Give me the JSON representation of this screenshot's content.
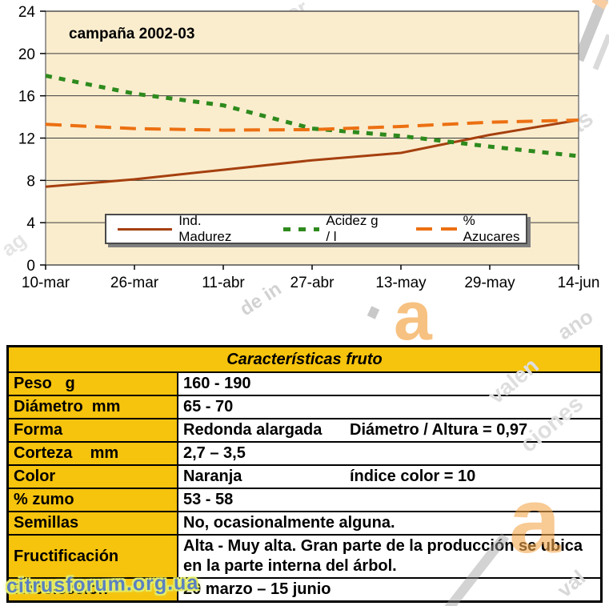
{
  "chart_data": {
    "type": "line",
    "title": "campaña 2002-03",
    "categories": [
      "10-mar",
      "26-mar",
      "11-abr",
      "27-abr",
      "13-may",
      "29-may",
      "14-jun"
    ],
    "series": [
      {
        "name": "Ind. Madurez",
        "style": "solid",
        "color": "#a5400f",
        "values": [
          7.4,
          8.1,
          9.0,
          9.9,
          10.6,
          12.3,
          13.7
        ]
      },
      {
        "name": "Acidez g / l",
        "style": "dotted",
        "color": "#2e8a1d",
        "values": [
          17.9,
          16.2,
          15.1,
          12.9,
          12.2,
          11.2,
          10.3
        ]
      },
      {
        "name": "% Azucares",
        "style": "dashed",
        "color": "#ec7012",
        "values": [
          13.3,
          12.9,
          12.75,
          12.8,
          13.1,
          13.5,
          13.7
        ]
      }
    ],
    "ylim": [
      0,
      24
    ],
    "y_ticks": [
      0,
      4,
      8,
      12,
      16,
      20,
      24
    ],
    "grid": true,
    "legend_position": "bottom-inside",
    "plot_bg": "#faedce",
    "plot_border": "#7a7a7a",
    "grid_color": "#3c3c3c"
  },
  "table": {
    "title": "Características fruto",
    "header_bg": "#f6c30d",
    "rows": [
      {
        "label": "Peso   g",
        "value": "160 - 190"
      },
      {
        "label": "Diámetro  mm",
        "value": "65 - 70"
      },
      {
        "label": "Forma",
        "value": "Redonda  alargada",
        "value2": "Diámetro / Altura = 0,97"
      },
      {
        "label": "Corteza    mm",
        "value": "2,7 – 3,5"
      },
      {
        "label": "Color",
        "value": "Naranja",
        "value2": "índice color = 10"
      },
      {
        "label": "% zumo",
        "value": "53 - 58"
      },
      {
        "label": "Semillas",
        "value": "No, ocasionalmente alguna."
      },
      {
        "label": "Fructificación",
        "value": "Alta - Muy alta. Gran parte de la producción se ubica en la parte interna del árbol."
      },
      {
        "label": "Recolección",
        "value": "20 marzo – 15 junio"
      }
    ]
  },
  "watermarks": {
    "site": "citrusforum.org.ua",
    "fragments": [
      "or",
      "as",
      "ag",
      "de in",
      "ano",
      "valen",
      "ciones",
      "val",
      "a",
      "a"
    ]
  }
}
